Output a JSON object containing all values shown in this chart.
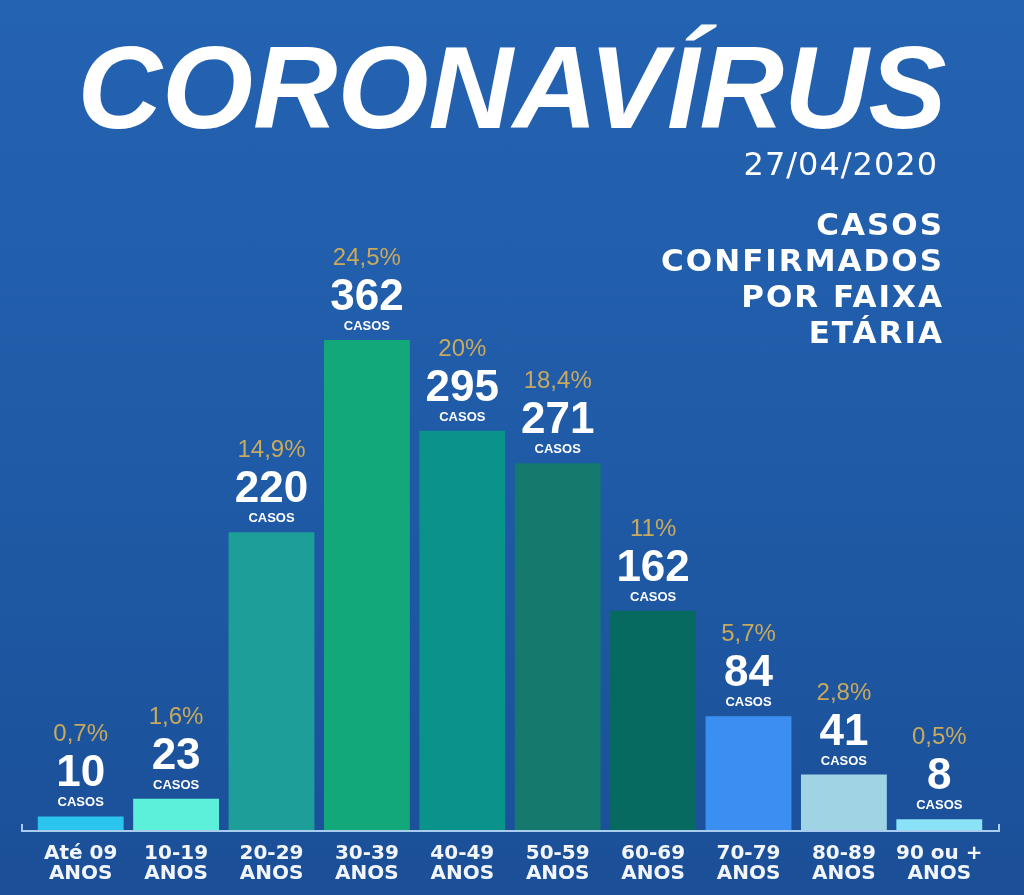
{
  "chart_data": {
    "type": "bar",
    "title": "CORONAVÍRUS",
    "subtitle": "CASOS\nCONFIRMADOS\nPOR FAIXA\nETÁRIA",
    "annotations": [
      "27/04/2020"
    ],
    "categories": [
      "Até 09\nANOS",
      "10-19\nANOS",
      "20-29\nANOS",
      "30-39\nANOS",
      "40-49\nANOS",
      "50-59\nANOS",
      "60-69\nANOS",
      "70-79\nANOS",
      "80-89\nANOS",
      "90 ou +\nANOS"
    ],
    "values": [
      10,
      23,
      220,
      362,
      295,
      271,
      162,
      84,
      41,
      8
    ],
    "colors": [
      "#2bc4ef",
      "#5cefd9",
      "#1d9e98",
      "#13a87a",
      "#0a938a",
      "#137a6d",
      "#076a60",
      "#3b8ff2",
      "#a0d4e4",
      "#8ae2f8"
    ],
    "value_labels": [
      "0,7%\n10\nCASOS",
      "1,6%\n23\nCASOS",
      "14,9%\n220\nCASOS",
      "24,5%\n362\nCASOS",
      "20%\n295\nCASOS",
      "18,4%\n271\nCASOS",
      "11%\n162\nCASOS",
      "5,7%\n84\nCASOS",
      "2,8%\n41\nCASOS",
      "0,5%\n8\nCASOS"
    ]
  }
}
